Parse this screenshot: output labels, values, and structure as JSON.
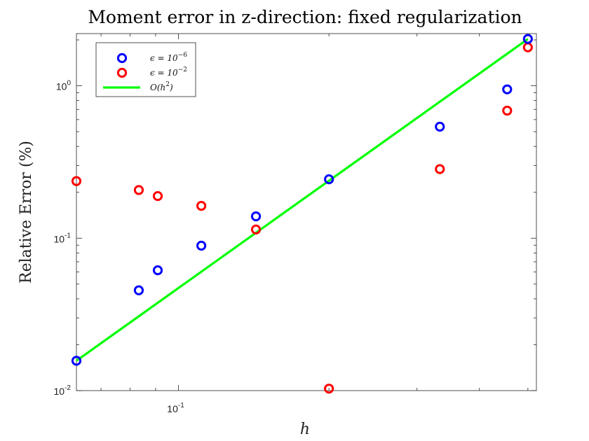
{
  "chart_data": {
    "type": "scatter",
    "title": "Moment error in z-direction: fixed regularization",
    "xlabel": "h",
    "ylabel": "Relative Error (%)",
    "xscale": "log",
    "yscale": "log",
    "xlim": [
      0.0625,
      0.52
    ],
    "ylim": [
      0.01,
      2.2
    ],
    "x_ticks": [
      {
        "value": 0.1,
        "base": "10",
        "exp": "-1"
      }
    ],
    "y_ticks": [
      {
        "value": 0.01,
        "base": "10",
        "exp": "-2"
      },
      {
        "value": 0.1,
        "base": "10",
        "exp": "-1"
      },
      {
        "value": 1,
        "base": "10",
        "exp": "0"
      }
    ],
    "grid": false,
    "legend_position": "top-left",
    "series": [
      {
        "name": "ε = 10^{-6}",
        "legend_main": "ϵ = 10",
        "legend_exp": "−6",
        "marker": "circle",
        "color": "#0000ff",
        "x": [
          0.0625,
          0.0833,
          0.0909,
          0.1111,
          0.1429,
          0.2,
          0.3333,
          0.4545,
          0.5
        ],
        "y": [
          0.0157,
          0.0455,
          0.0616,
          0.0893,
          0.1391,
          0.2435,
          0.5391,
          0.9474,
          2.029
        ]
      },
      {
        "name": "ε = 10^{-2}",
        "legend_main": "ϵ = 10",
        "legend_exp": "−2",
        "marker": "circle",
        "color": "#ff0000",
        "x": [
          0.0625,
          0.0833,
          0.0909,
          0.1111,
          0.1429,
          0.2,
          0.3333,
          0.4545,
          0.5
        ],
        "y": [
          0.237,
          0.207,
          0.189,
          0.163,
          0.114,
          0.0103,
          0.284,
          0.687,
          1.787
        ]
      },
      {
        "name": "O(h^2)",
        "legend_main": "O(h",
        "legend_exp": "2",
        "legend_tail": ")",
        "marker": "line",
        "color": "#00ff00",
        "x": [
          0.0625,
          0.5
        ],
        "y": [
          0.0157,
          2.029
        ]
      }
    ]
  }
}
